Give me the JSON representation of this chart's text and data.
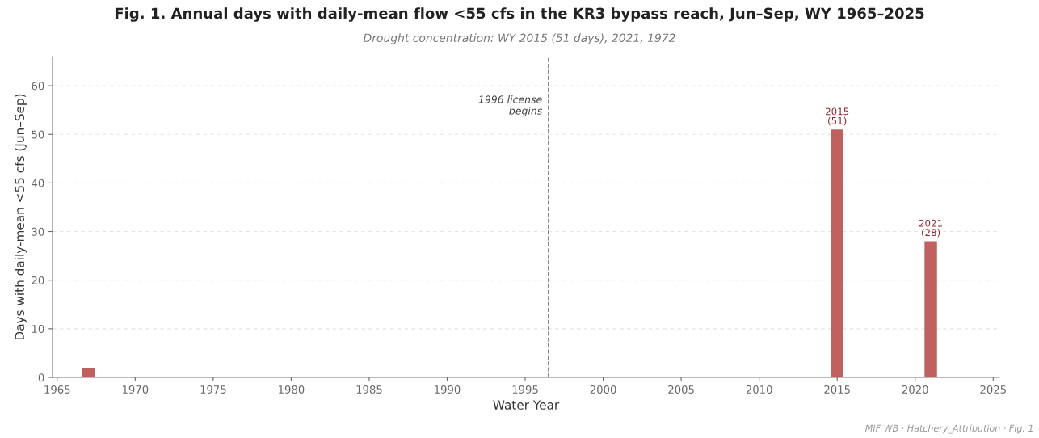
{
  "chart_data": {
    "type": "bar",
    "title": "Fig. 1. Annual days with daily-mean flow <55 cfs in the KR3 bypass reach, Jun–Sep, WY 1965–2025",
    "subtitle": "Drought concentration: WY 2015 (51 days), 2021, 1972",
    "xlabel": "Water Year",
    "ylabel": "Days with daily-mean <55 cfs (Jun–Sep)",
    "x": [
      1967,
      2015,
      2021
    ],
    "values": [
      2,
      51,
      28
    ],
    "color": "#c0605f",
    "value_labels": [
      null,
      "2015\n(51)",
      "2021\n(28)"
    ],
    "xlim": [
      1964.7,
      2025.4
    ],
    "xticks": [
      1965,
      1970,
      1975,
      1980,
      1985,
      1990,
      1995,
      2000,
      2005,
      2010,
      2015,
      2020,
      2025
    ],
    "ylim": [
      0,
      66
    ],
    "yticks": [
      0,
      10,
      20,
      30,
      40,
      50,
      60
    ],
    "grid": "y",
    "ref_lines": [
      {
        "axis": "x",
        "value": 1996.5,
        "label": "1996 license\nbegins",
        "color": "#555555",
        "line_style": "dashed"
      }
    ],
    "annotations": [
      "MIF WB · Hatchery_Attribution · Fig. 1"
    ]
  }
}
